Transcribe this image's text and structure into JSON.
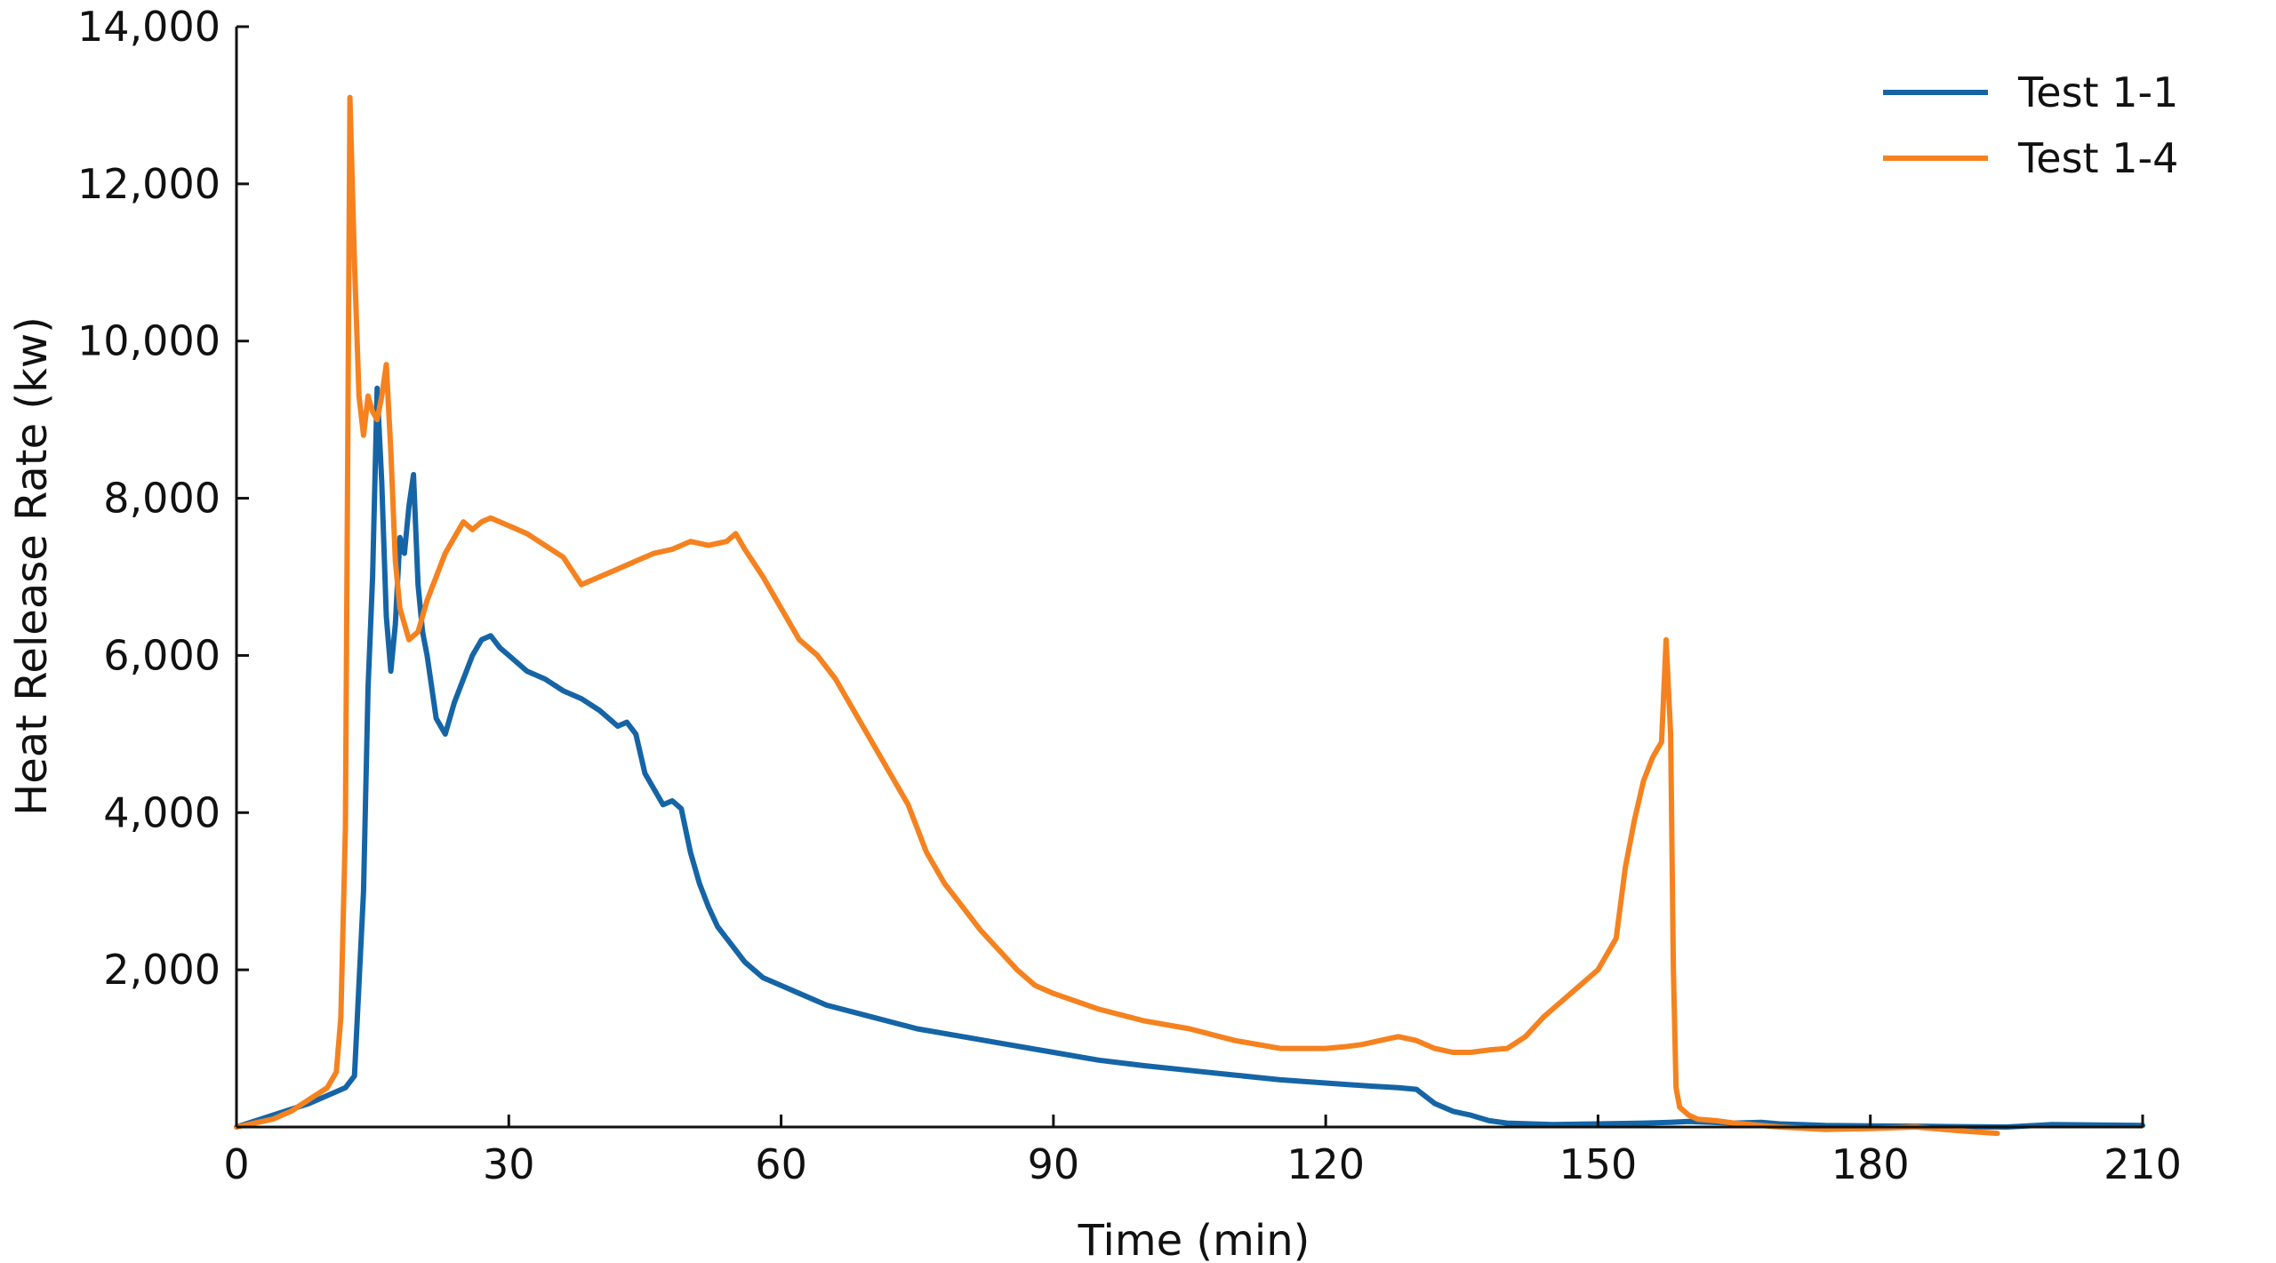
{
  "chart_data": {
    "type": "line",
    "xlabel": "Time (min)",
    "ylabel": "Heat Release Rate (kw)",
    "xlim": [
      0,
      210
    ],
    "ylim": [
      0,
      14000
    ],
    "x_ticks": [
      0,
      30,
      60,
      90,
      120,
      150,
      180,
      210
    ],
    "x_tick_labels": [
      "0",
      "30",
      "60",
      "90",
      "120",
      "150",
      "180",
      "210"
    ],
    "y_ticks": [
      2000,
      4000,
      6000,
      8000,
      10000,
      12000,
      14000
    ],
    "y_tick_labels": [
      "2,000",
      "4,000",
      "6,000",
      "8,000",
      "10,000",
      "12,000",
      "14,000"
    ],
    "grid": false,
    "legend_position": "top-right",
    "series": [
      {
        "name": "Test 1-1",
        "color": "#1565a6",
        "x": [
          0,
          4,
          8,
          10,
          12,
          13,
          14,
          14.5,
          15,
          15.5,
          16,
          16.5,
          17,
          17.5,
          18,
          18.5,
          19,
          19.5,
          20,
          20.5,
          21,
          22,
          23,
          24,
          25,
          26,
          27,
          28,
          29,
          30,
          32,
          34,
          36,
          38,
          40,
          42,
          43,
          44,
          45,
          46,
          47,
          48,
          49,
          50,
          51,
          52,
          53,
          54,
          55,
          56,
          58,
          60,
          65,
          70,
          75,
          80,
          85,
          90,
          95,
          100,
          105,
          110,
          115,
          120,
          125,
          128,
          130,
          132,
          134,
          136,
          138,
          140,
          145,
          150,
          155,
          158,
          160,
          165,
          168,
          170,
          175,
          180,
          185,
          190,
          195,
          200,
          205,
          210
        ],
        "y": [
          0,
          150,
          300,
          400,
          500,
          650,
          3000,
          5600,
          7000,
          9400,
          8200,
          6500,
          5800,
          6400,
          7500,
          7300,
          7900,
          8300,
          6900,
          6300,
          6000,
          5200,
          5000,
          5400,
          5700,
          6000,
          6200,
          6250,
          6100,
          6000,
          5800,
          5700,
          5550,
          5450,
          5300,
          5100,
          5150,
          5000,
          4500,
          4300,
          4100,
          4150,
          4050,
          3500,
          3100,
          2800,
          2550,
          2400,
          2250,
          2100,
          1900,
          1800,
          1550,
          1400,
          1250,
          1150,
          1050,
          950,
          850,
          780,
          720,
          660,
          600,
          560,
          520,
          500,
          480,
          300,
          200,
          150,
          80,
          50,
          30,
          40,
          50,
          60,
          70,
          50,
          60,
          40,
          20,
          15,
          10,
          5,
          0,
          30,
          25,
          20
        ]
      },
      {
        "name": "Test 1-4",
        "color": "#f5821f",
        "x": [
          0,
          4,
          6,
          8,
          10,
          11,
          11.5,
          12,
          12.5,
          13,
          13.5,
          14,
          14.5,
          15,
          15.5,
          16,
          16.5,
          17,
          17.5,
          18,
          19,
          20,
          21,
          22,
          23,
          24,
          25,
          26,
          27,
          28,
          29,
          30,
          32,
          34,
          36,
          38,
          40,
          42,
          44,
          46,
          48,
          50,
          52,
          54,
          55,
          56,
          58,
          60,
          62,
          64,
          66,
          68,
          70,
          72,
          74,
          76,
          78,
          80,
          82,
          84,
          86,
          88,
          90,
          95,
          100,
          105,
          110,
          115,
          120,
          122,
          124,
          126,
          128,
          130,
          132,
          134,
          136,
          138,
          140,
          142,
          144,
          146,
          148,
          150,
          152,
          153,
          154,
          155,
          156,
          157,
          157.5,
          158,
          158.3,
          158.6,
          159,
          160,
          161,
          163,
          165,
          170,
          175,
          180,
          185,
          190,
          194
        ],
        "y": [
          0,
          100,
          200,
          350,
          500,
          700,
          1400,
          3800,
          13100,
          11000,
          9300,
          8800,
          9300,
          9100,
          9000,
          9300,
          9700,
          8600,
          7200,
          6600,
          6200,
          6300,
          6700,
          7000,
          7300,
          7500,
          7700,
          7600,
          7700,
          7750,
          7700,
          7650,
          7550,
          7400,
          7250,
          6900,
          7000,
          7100,
          7200,
          7300,
          7350,
          7450,
          7400,
          7450,
          7550,
          7350,
          7000,
          6600,
          6200,
          6000,
          5700,
          5300,
          4900,
          4500,
          4100,
          3500,
          3100,
          2800,
          2500,
          2250,
          2000,
          1800,
          1700,
          1500,
          1350,
          1250,
          1100,
          1000,
          1000,
          1020,
          1050,
          1100,
          1150,
          1100,
          1000,
          950,
          950,
          980,
          1000,
          1150,
          1400,
          1600,
          1800,
          2000,
          2400,
          3300,
          3900,
          4400,
          4700,
          4900,
          6200,
          5000,
          2000,
          500,
          250,
          150,
          100,
          80,
          50,
          0,
          -30,
          -20,
          0,
          -50,
          -80
        ]
      }
    ]
  }
}
